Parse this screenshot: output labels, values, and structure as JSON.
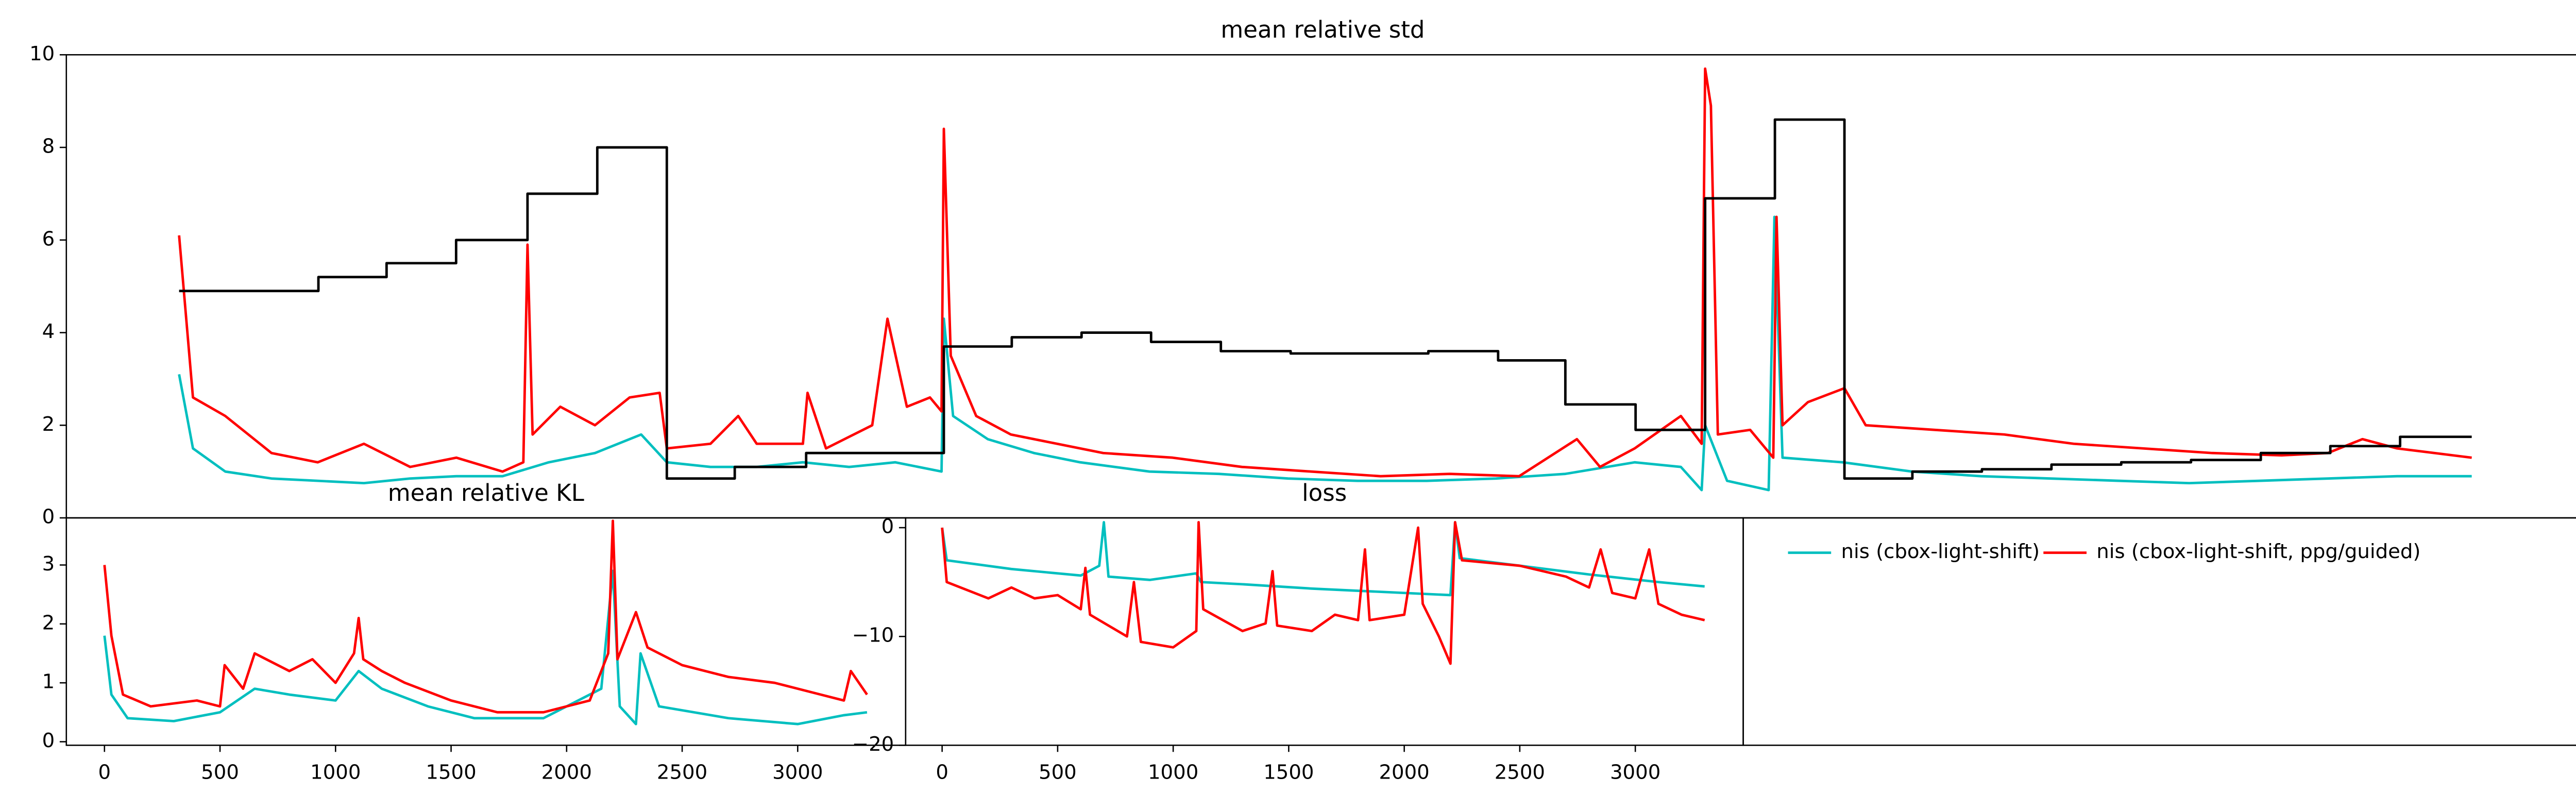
{
  "chart_data": [
    {
      "type": "line",
      "title": "mean relative std",
      "drawstyle_series": 2,
      "drawstyle": "steps-post",
      "xlim": [
        -488,
        10388
      ],
      "ylim": [
        0,
        10
      ],
      "yticks": [
        0,
        2,
        4,
        6,
        8,
        10
      ],
      "series": [
        {
          "color": "#00bfbf",
          "x": [
            0,
            60,
            200,
            400,
            600,
            800,
            1000,
            1200,
            1400,
            1600,
            1800,
            1900,
            2000,
            2111,
            2300,
            2500,
            2700,
            2900,
            3100,
            3300,
            3310,
            3350,
            3500,
            3700,
            3900,
            4200,
            4500,
            4800,
            5100,
            5400,
            5700,
            6000,
            6300,
            6500,
            6590,
            6605,
            6700,
            6880,
            6905,
            6940,
            7200,
            7500,
            7800,
            8100,
            8400,
            8700,
            9000,
            9300,
            9600,
            9923
          ],
          "values": [
            3.1,
            1.5,
            1.0,
            0.85,
            0.8,
            0.75,
            0.85,
            0.9,
            0.9,
            1.2,
            1.4,
            1.6,
            1.8,
            1.2,
            1.1,
            1.1,
            1.2,
            1.1,
            1.2,
            1.0,
            4.3,
            2.2,
            1.7,
            1.4,
            1.2,
            1.0,
            0.95,
            0.85,
            0.8,
            0.8,
            0.85,
            0.95,
            1.2,
            1.1,
            0.6,
            2.0,
            0.8,
            0.6,
            6.5,
            1.3,
            1.2,
            1.0,
            0.9,
            0.85,
            0.8,
            0.75,
            0.8,
            0.85,
            0.9,
            0.9
          ]
        },
        {
          "color": "#ff0000",
          "x": [
            0,
            60,
            200,
            400,
            600,
            800,
            1000,
            1200,
            1400,
            1490,
            1508,
            1530,
            1650,
            1800,
            1950,
            2080,
            2111,
            2300,
            2420,
            2500,
            2700,
            2720,
            2800,
            3000,
            3066,
            3150,
            3250,
            3300,
            3310,
            3340,
            3450,
            3600,
            3800,
            4000,
            4300,
            4600,
            4900,
            5200,
            5500,
            5800,
            6050,
            6150,
            6300,
            6500,
            6590,
            6605,
            6630,
            6660,
            6800,
            6900,
            6914,
            6940,
            7050,
            7208,
            7300,
            7600,
            7900,
            8200,
            8500,
            8800,
            9100,
            9300,
            9450,
            9600,
            9923
          ],
          "values": [
            6.1,
            2.6,
            2.2,
            1.4,
            1.2,
            1.6,
            1.1,
            1.3,
            1.0,
            1.2,
            5.9,
            1.8,
            2.4,
            2.0,
            2.6,
            2.7,
            1.5,
            1.6,
            2.2,
            1.6,
            1.6,
            2.7,
            1.5,
            2.0,
            4.3,
            2.4,
            2.6,
            2.3,
            8.4,
            3.5,
            2.2,
            1.8,
            1.6,
            1.4,
            1.3,
            1.1,
            1.0,
            0.9,
            0.95,
            0.9,
            1.7,
            1.1,
            1.5,
            2.2,
            1.6,
            9.7,
            8.9,
            1.8,
            1.9,
            1.3,
            6.5,
            2.0,
            2.5,
            2.8,
            2.0,
            1.9,
            1.8,
            1.6,
            1.5,
            1.4,
            1.35,
            1.4,
            1.7,
            1.5,
            1.3
          ]
        },
        {
          "color": "#000000",
          "x": [
            0,
            603,
            898,
            1199,
            1508,
            1810,
            2111,
            2405,
            2714,
            3310,
            3604,
            3906,
            4207,
            4509,
            4811,
            5105,
            5407,
            5709,
            6000,
            6304,
            6605,
            6907,
            7208,
            7502,
            7803,
            8104,
            8406,
            8708,
            9010,
            9311,
            9613,
            9923
          ],
          "values": [
            4.9,
            5.2,
            5.5,
            6.0,
            7.0,
            8.0,
            0.85,
            1.1,
            1.4,
            3.7,
            3.9,
            4.0,
            3.8,
            3.6,
            3.55,
            3.55,
            3.6,
            3.4,
            2.45,
            1.9,
            6.9,
            8.6,
            0.85,
            1.0,
            1.05,
            1.15,
            1.2,
            1.25,
            1.4,
            1.55,
            1.75,
            1.75
          ]
        }
      ]
    },
    {
      "type": "line",
      "title": "mean relative KL",
      "xlim": [
        -165,
        3467
      ],
      "xticks": [
        0,
        500,
        1000,
        1500,
        2000,
        2500,
        3000
      ],
      "ylim": [
        -0.06,
        3.8
      ],
      "yticks": [
        0,
        1,
        2,
        3
      ],
      "series": [
        {
          "color": "#00bfbf",
          "x": [
            0,
            30,
            100,
            300,
            500,
            650,
            800,
            1000,
            1100,
            1200,
            1400,
            1600,
            1900,
            2150,
            2200,
            2230,
            2300,
            2320,
            2400,
            2700,
            3000,
            3200,
            3300
          ],
          "values": [
            1.8,
            0.8,
            0.4,
            0.35,
            0.5,
            0.9,
            0.8,
            0.7,
            1.2,
            0.9,
            0.6,
            0.4,
            0.4,
            0.9,
            2.9,
            0.6,
            0.3,
            1.5,
            0.6,
            0.4,
            0.3,
            0.45,
            0.5
          ]
        },
        {
          "color": "#ff0000",
          "x": [
            0,
            30,
            80,
            200,
            400,
            500,
            520,
            600,
            650,
            800,
            900,
            1000,
            1080,
            1100,
            1120,
            1200,
            1300,
            1500,
            1700,
            1900,
            2100,
            2180,
            2200,
            2220,
            2300,
            2350,
            2500,
            2700,
            2900,
            3100,
            3200,
            3230,
            3300
          ],
          "values": [
            3.0,
            1.8,
            0.8,
            0.6,
            0.7,
            0.6,
            1.3,
            0.9,
            1.5,
            1.2,
            1.4,
            1.0,
            1.5,
            2.1,
            1.4,
            1.2,
            1.0,
            0.7,
            0.5,
            0.5,
            0.7,
            1.5,
            3.75,
            1.4,
            2.2,
            1.6,
            1.3,
            1.1,
            1.0,
            0.8,
            0.7,
            1.2,
            0.8
          ]
        }
      ]
    },
    {
      "type": "line",
      "title": "loss",
      "legend": "upper left",
      "xlim": [
        -158,
        3467
      ],
      "xticks": [
        0,
        500,
        1000,
        1500,
        2000,
        2500,
        3000
      ],
      "ylim": [
        -20,
        0.9
      ],
      "yticks": [
        {
          "value": -20,
          "label": "−20"
        },
        {
          "value": -10,
          "label": "−10"
        },
        0
      ],
      "series": [
        {
          "name": "nis (cbox-light-shift)",
          "color": "#00bfbf",
          "x": [
            0,
            20,
            300,
            600,
            680,
            700,
            720,
            900,
            1100,
            1120,
            1300,
            1600,
            1900,
            2100,
            2200,
            2220,
            2240,
            2500,
            2800,
            3100,
            3300
          ],
          "values": [
            0,
            -3,
            -3.8,
            -4.4,
            -3.5,
            0.5,
            -4.5,
            -4.8,
            -4.2,
            -5,
            -5.2,
            -5.6,
            -5.9,
            -6.1,
            -6.2,
            0.5,
            -2.8,
            -3.5,
            -4.3,
            -5,
            -5.4
          ]
        },
        {
          "name": "nis (cbox-light-shift, ppg/guided)",
          "color": "#ff0000",
          "x": [
            0,
            20,
            200,
            300,
            400,
            500,
            600,
            620,
            640,
            800,
            830,
            860,
            1000,
            1100,
            1110,
            1130,
            1300,
            1400,
            1430,
            1450,
            1600,
            1700,
            1800,
            1830,
            1850,
            2000,
            2060,
            2080,
            2150,
            2200,
            2220,
            2250,
            2500,
            2700,
            2800,
            2850,
            2900,
            3000,
            3060,
            3100,
            3200,
            3300
          ],
          "values": [
            0,
            -5,
            -6.5,
            -5.5,
            -6.5,
            -6.2,
            -7.5,
            -3.7,
            -8,
            -10,
            -5,
            -10.5,
            -11,
            -9.5,
            0.5,
            -7.5,
            -9.5,
            -8.8,
            -4,
            -9,
            -9.5,
            -8,
            -8.5,
            -2,
            -8.5,
            -8,
            0,
            -7,
            -10,
            -12.5,
            0.5,
            -3,
            -3.5,
            -4.5,
            -5.5,
            -2,
            -6,
            -6.5,
            -2,
            -7,
            -8,
            -8.5
          ]
        }
      ]
    }
  ]
}
